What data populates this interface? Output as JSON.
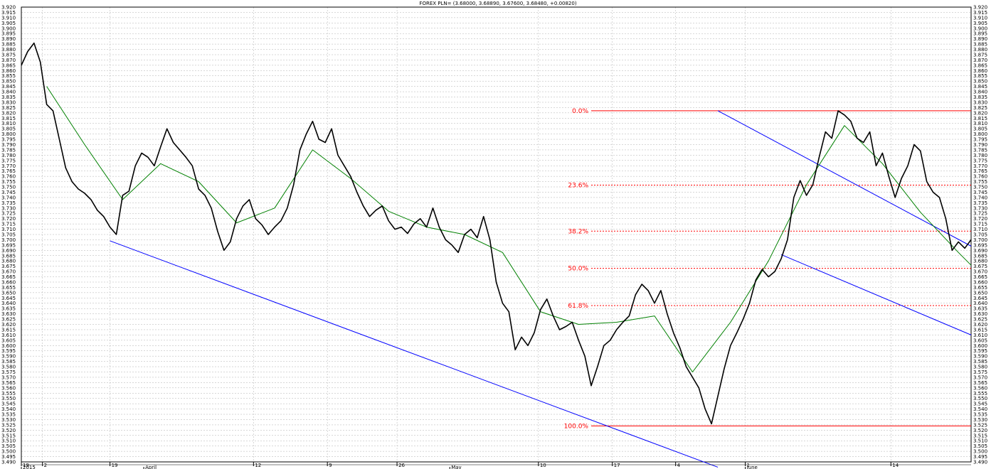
{
  "chart_data": {
    "type": "line",
    "title": "FOREX PLN= (3.68000, 3.68890, 3.67600, 3.68480, +0.00820)",
    "instrument": "FOREX PLN=",
    "ylim": [
      3.49,
      3.92
    ],
    "y_tick_step": 0.005,
    "x_period_labels": [
      "2015",
      "April",
      "May",
      "June"
    ],
    "x_day_labels": [
      "19",
      "2",
      "19",
      "12",
      "9",
      "26",
      "10",
      "17",
      "4",
      "1",
      "14"
    ],
    "grid": true,
    "colors": {
      "price": "#000000",
      "moving_average": "#008000",
      "trend_channel": "#0000ff",
      "fibonacci": "#ff0000",
      "grid": "#b0b0b0"
    },
    "series": [
      {
        "role": "price",
        "x": [
          0,
          3,
          6,
          9,
          12,
          15,
          18,
          21,
          24,
          27,
          30,
          33,
          36,
          39,
          42,
          45,
          48,
          51,
          54,
          57,
          60,
          63,
          66,
          69,
          72,
          75,
          78,
          81,
          84,
          87,
          90,
          93,
          96,
          99,
          102,
          105,
          108,
          111,
          114,
          117,
          120,
          123,
          126,
          129,
          132,
          135,
          138,
          141,
          144,
          147,
          150,
          153,
          156,
          159,
          162,
          165,
          168,
          171,
          174,
          177,
          180,
          183,
          186,
          189,
          192,
          195,
          198,
          201,
          204,
          207,
          210,
          213,
          216,
          219,
          222,
          225,
          228,
          231,
          234,
          237,
          240,
          243,
          246,
          249,
          252,
          255,
          258,
          261,
          264,
          267,
          270,
          273,
          276,
          279,
          282,
          285,
          288,
          291,
          294,
          297,
          300,
          303,
          306,
          309,
          312,
          315,
          318,
          321,
          324,
          327,
          330,
          333,
          336,
          339,
          342,
          345,
          348,
          351,
          354,
          357,
          360,
          363,
          366,
          369,
          372,
          375,
          378,
          381,
          384,
          387,
          390,
          393,
          396,
          399,
          402,
          405,
          408,
          411,
          414,
          417,
          420,
          423,
          426,
          429,
          432,
          435,
          438,
          441,
          444,
          447,
          450
        ],
        "values": [
          3.865,
          3.878,
          3.886,
          3.868,
          3.828,
          3.822,
          3.795,
          3.768,
          3.755,
          3.748,
          3.744,
          3.738,
          3.728,
          3.722,
          3.712,
          3.705,
          3.742,
          3.746,
          3.77,
          3.782,
          3.778,
          3.77,
          3.788,
          3.805,
          3.792,
          3.785,
          3.778,
          3.77,
          3.748,
          3.742,
          3.73,
          3.708,
          3.69,
          3.698,
          3.72,
          3.732,
          3.738,
          3.72,
          3.714,
          3.705,
          3.712,
          3.718,
          3.73,
          3.752,
          3.785,
          3.8,
          3.812,
          3.795,
          3.792,
          3.805,
          3.78,
          3.77,
          3.76,
          3.745,
          3.732,
          3.722,
          3.728,
          3.732,
          3.718,
          3.71,
          3.712,
          3.706,
          3.715,
          3.72,
          3.712,
          3.73,
          3.712,
          3.7,
          3.695,
          3.688,
          3.705,
          3.71,
          3.702,
          3.722,
          3.7,
          3.66,
          3.64,
          3.632,
          3.596,
          3.608,
          3.6,
          3.612,
          3.634,
          3.644,
          3.628,
          3.615,
          3.618,
          3.622,
          3.605,
          3.59,
          3.562,
          3.58,
          3.6,
          3.605,
          3.615,
          3.622,
          3.628,
          3.648,
          3.658,
          3.652,
          3.64,
          3.652,
          3.63,
          3.612,
          3.598,
          3.58,
          3.57,
          3.56,
          3.54,
          3.526,
          3.552,
          3.578,
          3.6,
          3.612,
          3.625,
          3.64,
          3.662,
          3.672,
          3.665,
          3.67,
          3.682,
          3.7,
          3.74,
          3.756,
          3.742,
          3.752,
          3.778,
          3.802,
          3.796,
          3.822,
          3.818,
          3.812,
          3.796,
          3.792,
          3.802,
          3.77,
          3.782,
          3.76,
          3.74,
          3.758,
          3.77,
          3.79,
          3.784,
          3.755,
          3.745,
          3.74,
          3.72,
          3.69,
          3.698,
          3.692,
          3.7
        ]
      },
      {
        "role": "moving_average",
        "x": [
          12,
          30,
          48,
          66,
          84,
          102,
          120,
          138,
          156,
          174,
          192,
          210,
          228,
          246,
          264,
          282,
          300,
          318,
          336,
          354,
          372,
          390,
          408,
          426,
          444,
          450
        ],
        "values": [
          3.845,
          3.79,
          3.738,
          3.772,
          3.755,
          3.716,
          3.73,
          3.785,
          3.758,
          3.727,
          3.712,
          3.705,
          3.688,
          3.632,
          3.62,
          3.622,
          3.628,
          3.575,
          3.622,
          3.68,
          3.752,
          3.808,
          3.772,
          3.726,
          3.688,
          3.676
        ]
      }
    ],
    "trend_channels": [
      {
        "x": [
          42,
          330
        ],
        "values": [
          3.699,
          3.485
        ]
      },
      {
        "x": [
          330,
          450
        ],
        "values": [
          3.822,
          3.694
        ]
      },
      {
        "x": [
          360,
          450
        ],
        "values": [
          3.686,
          3.61
        ]
      }
    ],
    "fibonacci": {
      "high": 3.822,
      "low": 3.524,
      "x_start": 270,
      "x_end": 450,
      "levels": [
        {
          "label": "0.0%",
          "ratio": 0.0
        },
        {
          "label": "23.6%",
          "ratio": 0.236
        },
        {
          "label": "38.2%",
          "ratio": 0.382
        },
        {
          "label": "50.0%",
          "ratio": 0.5
        },
        {
          "label": "61.8%",
          "ratio": 0.618
        },
        {
          "label": "100.0%",
          "ratio": 1.0
        }
      ]
    }
  }
}
